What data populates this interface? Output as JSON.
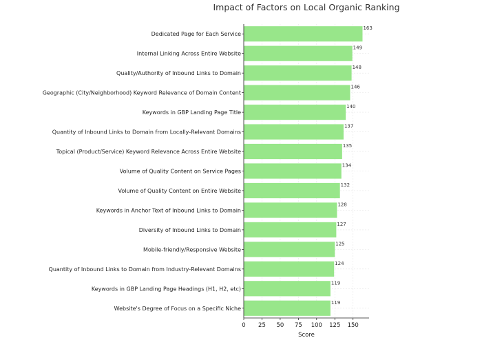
{
  "chart_data": {
    "type": "bar",
    "orientation": "horizontal",
    "title": "Impact of Factors on Local Organic Ranking",
    "xlabel": "Score",
    "ylabel": "",
    "xlim": [
      0,
      172
    ],
    "xticks": [
      0,
      25,
      50,
      75,
      100,
      125,
      150
    ],
    "grid": true,
    "bar_color": "#98e68a",
    "categories": [
      "Dedicated Page for Each Service",
      "Internal Linking Across Entire Website",
      "Quality/Authority of Inbound Links to Domain",
      "Geographic (City/Neighborhood) Keyword Relevance of Domain Content",
      "Keywords in GBP Landing Page Title",
      "Quantity of Inbound Links to Domain from Locally-Relevant Domains",
      "Topical (Product/Service) Keyword Relevance Across Entire Website",
      "Volume of Quality Content on Service Pages",
      "Volume of Quality Content on Entire Website",
      "Keywords in Anchor Text of Inbound Links to Domain",
      "Diversity of Inbound Links to Domain",
      "Mobile-friendly/Responsive Website",
      "Quantity of Inbound Links to Domain from Industry-Relevant Domains",
      "Keywords in GBP Landing Page Headings (H1, H2, etc)",
      "Website's Degree of Focus on a Specific Niche"
    ],
    "values": [
      163,
      149,
      148,
      146,
      140,
      137,
      135,
      134,
      132,
      128,
      127,
      125,
      124,
      119,
      119
    ]
  }
}
